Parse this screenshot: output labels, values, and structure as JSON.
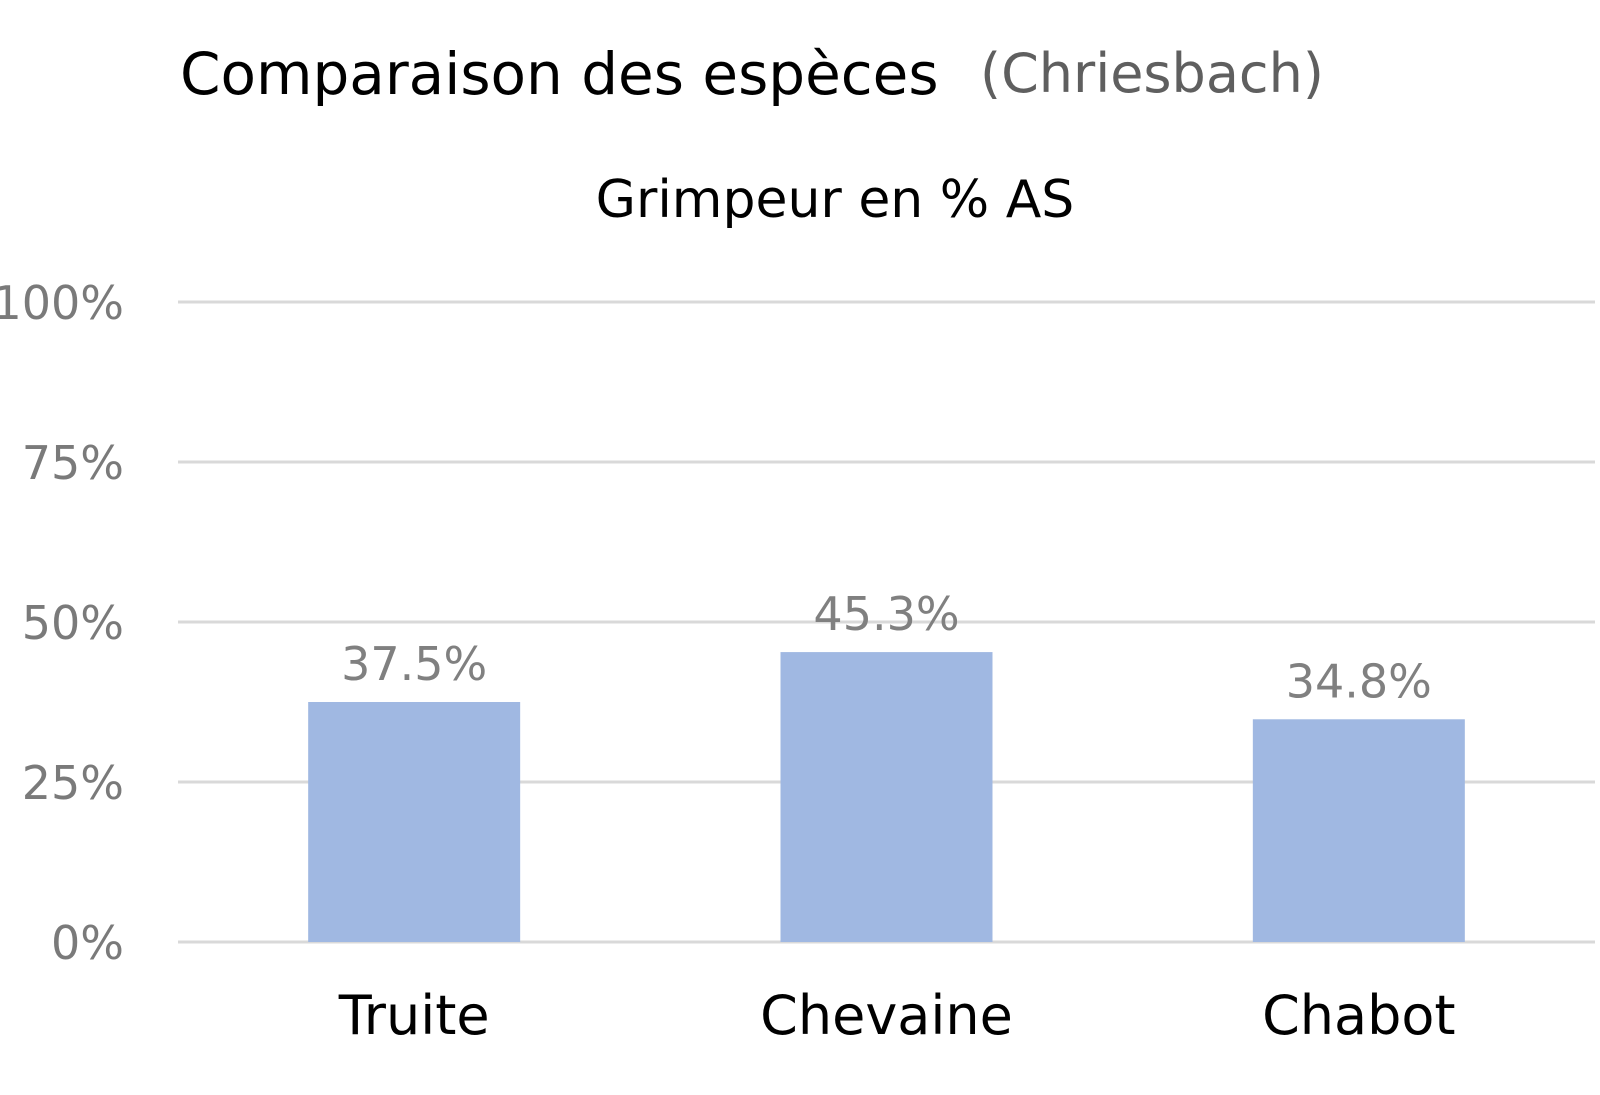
{
  "header": {
    "title": "Comparaison des espèces",
    "subtitle": "(Chriesbach)"
  },
  "colors": {
    "bar": "#a0b8e2",
    "grid": "#d9d9d9",
    "tick_label": "#7a7a7a",
    "data_label": "#808080",
    "category_label": "#000000",
    "title": "#000000",
    "subtitle": "#5f5f5f"
  },
  "chart_data": {
    "type": "bar",
    "title": "Grimpeur en % AS",
    "xlabel": "",
    "ylabel": "",
    "categories": [
      "Truite",
      "Chevaine",
      "Chabot"
    ],
    "values": [
      37.5,
      45.3,
      34.8
    ],
    "data_labels": [
      "37.5%",
      "45.3%",
      "34.8%"
    ],
    "ylim": [
      0,
      100
    ],
    "yticks": [
      0,
      25,
      50,
      75,
      100
    ],
    "ytick_labels": [
      "0%",
      "25%",
      "50%",
      "75%",
      "100%"
    ],
    "grid": true,
    "legend": "none"
  }
}
